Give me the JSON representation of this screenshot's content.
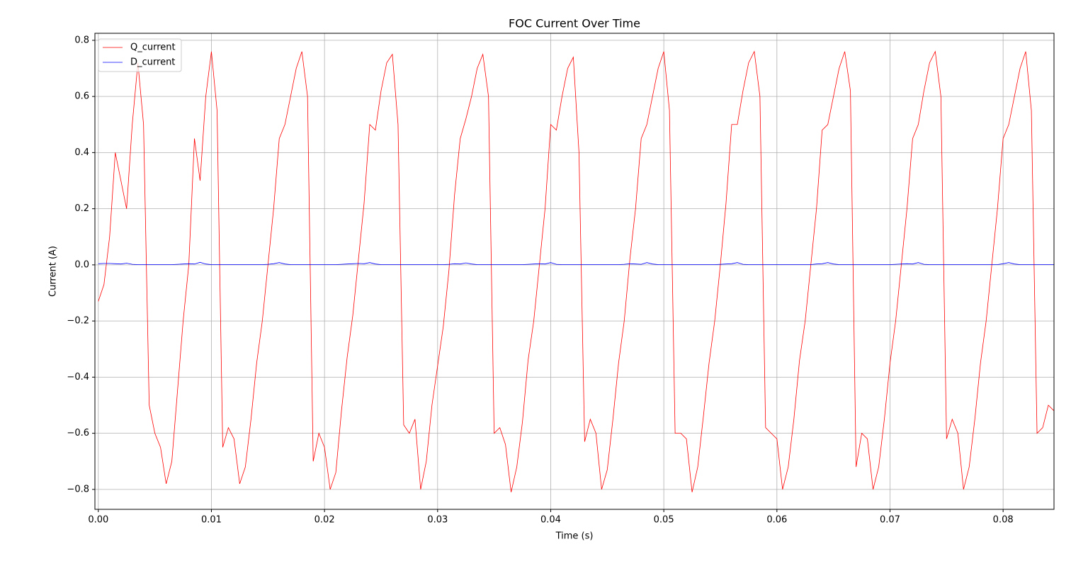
{
  "chart_data": {
    "type": "line",
    "title": "FOC Current Over Time",
    "x_label": "Time (s)",
    "y_label": "Current (A)",
    "x": [
      0,
      0.0005,
      0.001,
      0.0015,
      0.002,
      0.0025,
      0.003,
      0.0035,
      0.004,
      0.0045,
      0.005,
      0.0055,
      0.006,
      0.0065,
      0.007,
      0.0075,
      0.008,
      0.0085,
      0.009,
      0.0095,
      0.01,
      0.0105,
      0.011,
      0.0115,
      0.012,
      0.0125,
      0.013,
      0.0135,
      0.014,
      0.0145,
      0.015,
      0.0155,
      0.016,
      0.0165,
      0.017,
      0.0175,
      0.018,
      0.0185,
      0.019,
      0.0195,
      0.02,
      0.0205,
      0.021,
      0.0215,
      0.022,
      0.0225,
      0.023,
      0.0235,
      0.024,
      0.0245,
      0.025,
      0.0255,
      0.026,
      0.0265,
      0.027,
      0.0275,
      0.028,
      0.0285,
      0.029,
      0.0295,
      0.03,
      0.0305,
      0.031,
      0.0315,
      0.032,
      0.0325,
      0.033,
      0.0335,
      0.034,
      0.0345,
      0.035,
      0.0355,
      0.036,
      0.0365,
      0.037,
      0.0375,
      0.038,
      0.0385,
      0.039,
      0.0395,
      0.04,
      0.0405,
      0.041,
      0.0415,
      0.042,
      0.0425,
      0.043,
      0.0435,
      0.044,
      0.0445,
      0.045,
      0.0455,
      0.046,
      0.0465,
      0.047,
      0.0475,
      0.048,
      0.0485,
      0.049,
      0.0495,
      0.05,
      0.0505,
      0.051,
      0.0515,
      0.052,
      0.0525,
      0.053,
      0.0535,
      0.054,
      0.0545,
      0.055,
      0.0555,
      0.056,
      0.0565,
      0.057,
      0.0575,
      0.058,
      0.0585,
      0.059,
      0.0595,
      0.06,
      0.0605,
      0.061,
      0.0615,
      0.062,
      0.0625,
      0.063,
      0.0635,
      0.064,
      0.0645,
      0.065,
      0.0655,
      0.066,
      0.0665,
      0.067,
      0.0675,
      0.068,
      0.0685,
      0.069,
      0.0695,
      0.07,
      0.0705,
      0.071,
      0.0715,
      0.072,
      0.0725,
      0.073,
      0.0735,
      0.074,
      0.0745,
      0.075,
      0.0755,
      0.076,
      0.0765,
      0.077,
      0.0775,
      0.078,
      0.0785,
      0.079,
      0.0795,
      0.08,
      0.0805,
      0.081,
      0.0815,
      0.082,
      0.0825,
      0.083,
      0.0835,
      0.084,
      0.0845
    ],
    "series": [
      {
        "name": "Q_current",
        "color": "#ff0000",
        "values": [
          -0.13,
          -0.07,
          0.1,
          0.4,
          0.3,
          0.2,
          0.5,
          0.72,
          0.5,
          -0.5,
          -0.6,
          -0.65,
          -0.78,
          -0.7,
          -0.45,
          -0.2,
          0.0,
          0.45,
          0.3,
          0.6,
          0.76,
          0.55,
          -0.65,
          -0.58,
          -0.62,
          -0.78,
          -0.72,
          -0.55,
          -0.35,
          -0.2,
          0.0,
          0.2,
          0.45,
          0.5,
          0.6,
          0.7,
          0.76,
          0.6,
          -0.7,
          -0.6,
          -0.65,
          -0.8,
          -0.74,
          -0.52,
          -0.33,
          -0.18,
          0.02,
          0.22,
          0.5,
          0.48,
          0.62,
          0.72,
          0.75,
          0.5,
          -0.57,
          -0.6,
          -0.55,
          -0.8,
          -0.7,
          -0.5,
          -0.36,
          -0.22,
          -0.02,
          0.25,
          0.45,
          0.52,
          0.6,
          0.7,
          0.75,
          0.6,
          -0.6,
          -0.58,
          -0.64,
          -0.81,
          -0.72,
          -0.56,
          -0.34,
          -0.2,
          0.0,
          0.2,
          0.5,
          0.48,
          0.6,
          0.7,
          0.74,
          0.4,
          -0.63,
          -0.55,
          -0.6,
          -0.8,
          -0.73,
          -0.55,
          -0.35,
          -0.2,
          0.02,
          0.2,
          0.45,
          0.5,
          0.6,
          0.7,
          0.76,
          0.55,
          -0.6,
          -0.6,
          -0.62,
          -0.81,
          -0.72,
          -0.54,
          -0.35,
          -0.2,
          0.0,
          0.22,
          0.5,
          0.5,
          0.62,
          0.72,
          0.76,
          0.6,
          -0.58,
          -0.6,
          -0.62,
          -0.8,
          -0.72,
          -0.55,
          -0.34,
          -0.2,
          0.0,
          0.2,
          0.48,
          0.5,
          0.6,
          0.7,
          0.76,
          0.62,
          -0.72,
          -0.6,
          -0.62,
          -0.8,
          -0.72,
          -0.55,
          -0.35,
          -0.2,
          0.0,
          0.2,
          0.45,
          0.5,
          0.62,
          0.72,
          0.76,
          0.6,
          -0.62,
          -0.55,
          -0.6,
          -0.8,
          -0.72,
          -0.55,
          -0.35,
          -0.2,
          0.0,
          0.2,
          0.45,
          0.5,
          0.6,
          0.7,
          0.76,
          0.55,
          -0.6,
          -0.58,
          -0.5,
          -0.52
        ]
      },
      {
        "name": "D_current",
        "color": "#0000ff",
        "values": [
          0.004,
          0.005,
          0.005,
          0.004,
          0.003,
          0.006,
          0.002,
          0.001,
          0.001,
          0.001,
          0.001,
          0.001,
          0.001,
          0.001,
          0.002,
          0.003,
          0.004,
          0.003,
          0.009,
          0.003,
          0.001,
          0.001,
          0.001,
          0.001,
          0.001,
          0.001,
          0.001,
          0.001,
          0.001,
          0.001,
          0.002,
          0.004,
          0.008,
          0.003,
          0.001,
          0.001,
          0.001,
          0.001,
          0.001,
          0.001,
          0.001,
          0.001,
          0.001,
          0.002,
          0.003,
          0.004,
          0.005,
          0.004,
          0.008,
          0.003,
          0.001,
          0.001,
          0.001,
          0.001,
          0.001,
          0.001,
          0.001,
          0.001,
          0.001,
          0.001,
          0.001,
          0.001,
          0.002,
          0.004,
          0.003,
          0.007,
          0.003,
          0.001,
          0.001,
          0.001,
          0.001,
          0.001,
          0.001,
          0.001,
          0.001,
          0.001,
          0.002,
          0.003,
          0.004,
          0.003,
          0.008,
          0.002,
          0.001,
          0.001,
          0.001,
          0.001,
          0.001,
          0.001,
          0.001,
          0.001,
          0.001,
          0.001,
          0.001,
          0.002,
          0.004,
          0.003,
          0.002,
          0.008,
          0.003,
          0.001,
          0.001,
          0.001,
          0.001,
          0.001,
          0.001,
          0.001,
          0.001,
          0.001,
          0.001,
          0.001,
          0.002,
          0.003,
          0.004,
          0.008,
          0.002,
          0.001,
          0.001,
          0.001,
          0.001,
          0.001,
          0.001,
          0.001,
          0.001,
          0.001,
          0.001,
          0.001,
          0.001,
          0.003,
          0.004,
          0.008,
          0.003,
          0.001,
          0.001,
          0.001,
          0.001,
          0.001,
          0.001,
          0.001,
          0.001,
          0.001,
          0.001,
          0.002,
          0.003,
          0.004,
          0.003,
          0.008,
          0.002,
          0.001,
          0.001,
          0.001,
          0.001,
          0.001,
          0.001,
          0.001,
          0.001,
          0.001,
          0.001,
          0.001,
          0.001,
          0.001,
          0.004,
          0.008,
          0.003,
          0.001,
          0.001,
          0.001,
          0.001,
          0.001,
          0.001,
          0.001
        ]
      }
    ],
    "xlim": [
      -0.0003,
      0.0845
    ],
    "ylim": [
      -0.871,
      0.825
    ],
    "xticks": [
      {
        "value": 0,
        "label": "0.00"
      },
      0.01,
      0.02,
      0.03,
      0.04,
      0.05,
      0.06,
      0.07,
      0.08
    ],
    "yticks": [
      {
        "value": -0.8,
        "label": "−0.8"
      },
      {
        "value": -0.6,
        "label": "−0.6"
      },
      {
        "value": -0.4,
        "label": "−0.4"
      },
      {
        "value": -0.2,
        "label": "−0.2"
      },
      {
        "value": 0,
        "label": "0.0"
      },
      0.2,
      0.4,
      0.6,
      0.8
    ],
    "grid": true,
    "legend": "upper-left"
  }
}
